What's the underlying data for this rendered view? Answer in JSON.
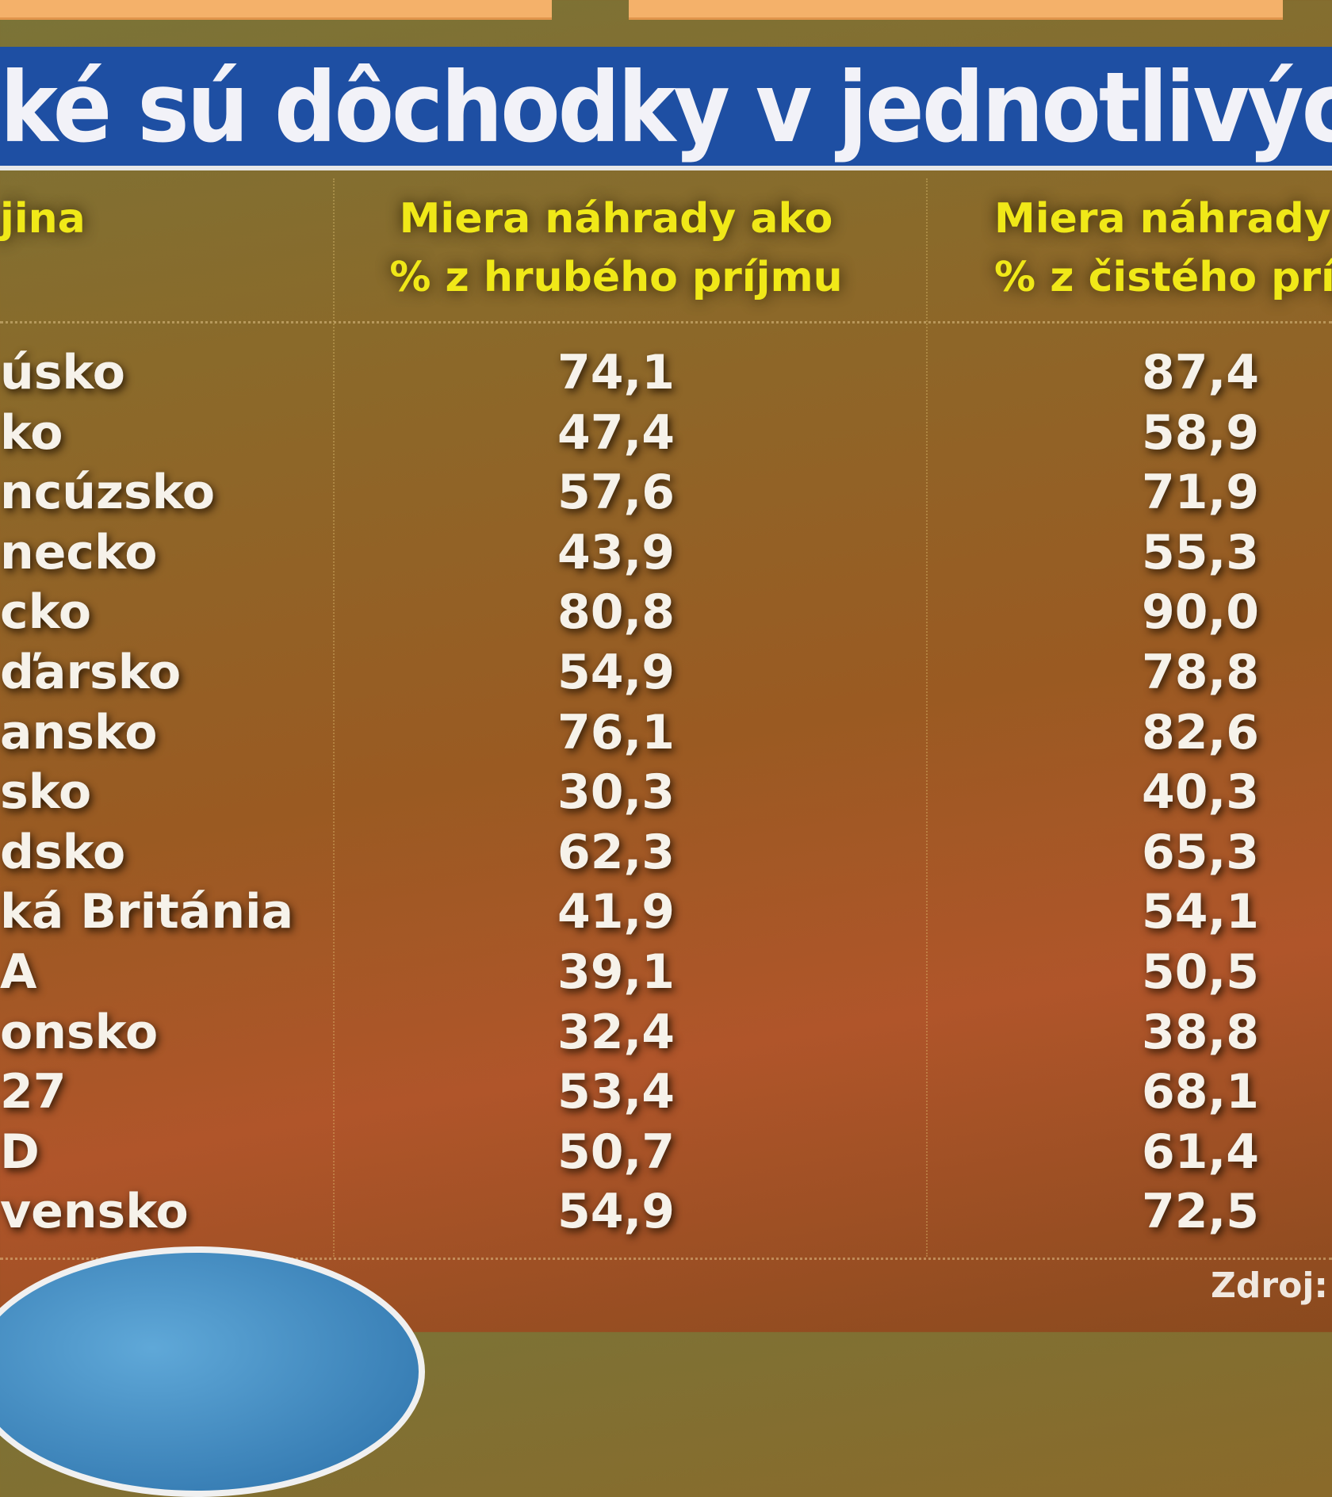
{
  "title": "ké sú dôchodky v jednotlivých krajinách",
  "table": {
    "header": [
      [
        "jina"
      ],
      [
        "Miera náhrady ako",
        "% z hrubého príjmu"
      ],
      [
        "Miera náhrady a",
        "% z čistého príjm"
      ]
    ],
    "rows": [
      [
        "úsko",
        "74,1",
        "87,4"
      ],
      [
        "ko",
        "47,4",
        "58,9"
      ],
      [
        "ncúzsko",
        "57,6",
        "71,9"
      ],
      [
        "necko",
        "43,9",
        "55,3"
      ],
      [
        "cko",
        "80,8",
        "90,0"
      ],
      [
        "ďarsko",
        "54,9",
        "78,8"
      ],
      [
        "ansko",
        "76,1",
        "82,6"
      ],
      [
        "sko",
        "30,3",
        "40,3"
      ],
      [
        "dsko",
        "62,3",
        "65,3"
      ],
      [
        "ká Británia",
        "41,9",
        "54,1"
      ],
      [
        "A",
        "39,1",
        "50,5"
      ],
      [
        "onsko",
        "32,4",
        "38,8"
      ],
      [
        "27",
        "53,4",
        "68,1"
      ],
      [
        "D",
        "50,7",
        "61,4"
      ],
      [
        "vensko",
        "54,9",
        "72,5"
      ]
    ]
  },
  "source": "Zdroj: O"
}
